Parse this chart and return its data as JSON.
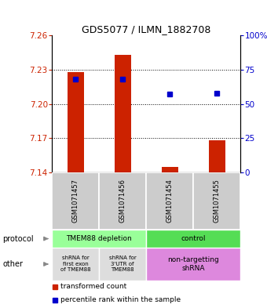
{
  "title": "GDS5077 / ILMN_1882708",
  "samples": [
    "GSM1071457",
    "GSM1071456",
    "GSM1071454",
    "GSM1071455"
  ],
  "bar_values": [
    7.228,
    7.243,
    7.145,
    7.168
  ],
  "bar_bottom": 7.14,
  "percentile_values": [
    68,
    68,
    57,
    58
  ],
  "ylim_left": [
    7.14,
    7.26
  ],
  "yticks_left": [
    7.14,
    7.17,
    7.2,
    7.23,
    7.26
  ],
  "yticks_right": [
    0,
    25,
    50,
    75,
    100
  ],
  "bar_color": "#cc2200",
  "dot_color": "#0000cc",
  "sample_bg_color": "#cccccc",
  "protocol1_color": "#99ff99",
  "protocol2_color": "#55dd55",
  "other1_color": "#dddddd",
  "other2_color": "#dd88dd",
  "legend_red_label": "transformed count",
  "legend_blue_label": "percentile rank within the sample"
}
